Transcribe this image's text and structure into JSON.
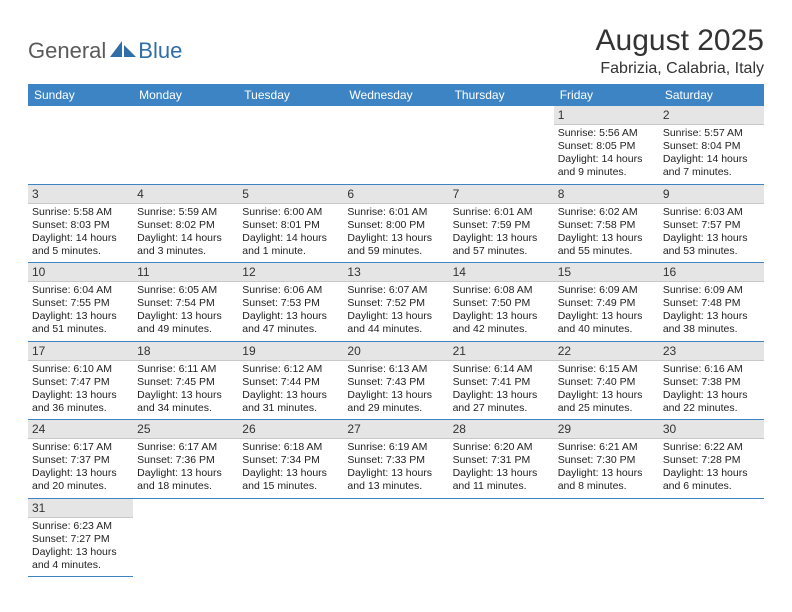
{
  "logo": {
    "text1": "General",
    "text2": "Blue"
  },
  "title": "August 2025",
  "subtitle": "Fabrizia, Calabria, Italy",
  "colors": {
    "header_bg": "#3d84c4",
    "header_fg": "#ffffff",
    "daynum_bg": "#e5e5e5",
    "row_border": "#3d84c4",
    "logo_primary": "#5a5a5a",
    "logo_accent": "#2f6ea8"
  },
  "typography": {
    "title_size": 30,
    "subtitle_size": 16,
    "header_cell_size": 12,
    "daynum_size": 12,
    "body_size": 10.5
  },
  "weekdays": [
    "Sunday",
    "Monday",
    "Tuesday",
    "Wednesday",
    "Thursday",
    "Friday",
    "Saturday"
  ],
  "weeks": [
    [
      null,
      null,
      null,
      null,
      null,
      {
        "n": "1",
        "sr": "Sunrise: 5:56 AM",
        "ss": "Sunset: 8:05 PM",
        "dl": "Daylight: 14 hours and 9 minutes."
      },
      {
        "n": "2",
        "sr": "Sunrise: 5:57 AM",
        "ss": "Sunset: 8:04 PM",
        "dl": "Daylight: 14 hours and 7 minutes."
      }
    ],
    [
      {
        "n": "3",
        "sr": "Sunrise: 5:58 AM",
        "ss": "Sunset: 8:03 PM",
        "dl": "Daylight: 14 hours and 5 minutes."
      },
      {
        "n": "4",
        "sr": "Sunrise: 5:59 AM",
        "ss": "Sunset: 8:02 PM",
        "dl": "Daylight: 14 hours and 3 minutes."
      },
      {
        "n": "5",
        "sr": "Sunrise: 6:00 AM",
        "ss": "Sunset: 8:01 PM",
        "dl": "Daylight: 14 hours and 1 minute."
      },
      {
        "n": "6",
        "sr": "Sunrise: 6:01 AM",
        "ss": "Sunset: 8:00 PM",
        "dl": "Daylight: 13 hours and 59 minutes."
      },
      {
        "n": "7",
        "sr": "Sunrise: 6:01 AM",
        "ss": "Sunset: 7:59 PM",
        "dl": "Daylight: 13 hours and 57 minutes."
      },
      {
        "n": "8",
        "sr": "Sunrise: 6:02 AM",
        "ss": "Sunset: 7:58 PM",
        "dl": "Daylight: 13 hours and 55 minutes."
      },
      {
        "n": "9",
        "sr": "Sunrise: 6:03 AM",
        "ss": "Sunset: 7:57 PM",
        "dl": "Daylight: 13 hours and 53 minutes."
      }
    ],
    [
      {
        "n": "10",
        "sr": "Sunrise: 6:04 AM",
        "ss": "Sunset: 7:55 PM",
        "dl": "Daylight: 13 hours and 51 minutes."
      },
      {
        "n": "11",
        "sr": "Sunrise: 6:05 AM",
        "ss": "Sunset: 7:54 PM",
        "dl": "Daylight: 13 hours and 49 minutes."
      },
      {
        "n": "12",
        "sr": "Sunrise: 6:06 AM",
        "ss": "Sunset: 7:53 PM",
        "dl": "Daylight: 13 hours and 47 minutes."
      },
      {
        "n": "13",
        "sr": "Sunrise: 6:07 AM",
        "ss": "Sunset: 7:52 PM",
        "dl": "Daylight: 13 hours and 44 minutes."
      },
      {
        "n": "14",
        "sr": "Sunrise: 6:08 AM",
        "ss": "Sunset: 7:50 PM",
        "dl": "Daylight: 13 hours and 42 minutes."
      },
      {
        "n": "15",
        "sr": "Sunrise: 6:09 AM",
        "ss": "Sunset: 7:49 PM",
        "dl": "Daylight: 13 hours and 40 minutes."
      },
      {
        "n": "16",
        "sr": "Sunrise: 6:09 AM",
        "ss": "Sunset: 7:48 PM",
        "dl": "Daylight: 13 hours and 38 minutes."
      }
    ],
    [
      {
        "n": "17",
        "sr": "Sunrise: 6:10 AM",
        "ss": "Sunset: 7:47 PM",
        "dl": "Daylight: 13 hours and 36 minutes."
      },
      {
        "n": "18",
        "sr": "Sunrise: 6:11 AM",
        "ss": "Sunset: 7:45 PM",
        "dl": "Daylight: 13 hours and 34 minutes."
      },
      {
        "n": "19",
        "sr": "Sunrise: 6:12 AM",
        "ss": "Sunset: 7:44 PM",
        "dl": "Daylight: 13 hours and 31 minutes."
      },
      {
        "n": "20",
        "sr": "Sunrise: 6:13 AM",
        "ss": "Sunset: 7:43 PM",
        "dl": "Daylight: 13 hours and 29 minutes."
      },
      {
        "n": "21",
        "sr": "Sunrise: 6:14 AM",
        "ss": "Sunset: 7:41 PM",
        "dl": "Daylight: 13 hours and 27 minutes."
      },
      {
        "n": "22",
        "sr": "Sunrise: 6:15 AM",
        "ss": "Sunset: 7:40 PM",
        "dl": "Daylight: 13 hours and 25 minutes."
      },
      {
        "n": "23",
        "sr": "Sunrise: 6:16 AM",
        "ss": "Sunset: 7:38 PM",
        "dl": "Daylight: 13 hours and 22 minutes."
      }
    ],
    [
      {
        "n": "24",
        "sr": "Sunrise: 6:17 AM",
        "ss": "Sunset: 7:37 PM",
        "dl": "Daylight: 13 hours and 20 minutes."
      },
      {
        "n": "25",
        "sr": "Sunrise: 6:17 AM",
        "ss": "Sunset: 7:36 PM",
        "dl": "Daylight: 13 hours and 18 minutes."
      },
      {
        "n": "26",
        "sr": "Sunrise: 6:18 AM",
        "ss": "Sunset: 7:34 PM",
        "dl": "Daylight: 13 hours and 15 minutes."
      },
      {
        "n": "27",
        "sr": "Sunrise: 6:19 AM",
        "ss": "Sunset: 7:33 PM",
        "dl": "Daylight: 13 hours and 13 minutes."
      },
      {
        "n": "28",
        "sr": "Sunrise: 6:20 AM",
        "ss": "Sunset: 7:31 PM",
        "dl": "Daylight: 13 hours and 11 minutes."
      },
      {
        "n": "29",
        "sr": "Sunrise: 6:21 AM",
        "ss": "Sunset: 7:30 PM",
        "dl": "Daylight: 13 hours and 8 minutes."
      },
      {
        "n": "30",
        "sr": "Sunrise: 6:22 AM",
        "ss": "Sunset: 7:28 PM",
        "dl": "Daylight: 13 hours and 6 minutes."
      }
    ],
    [
      {
        "n": "31",
        "sr": "Sunrise: 6:23 AM",
        "ss": "Sunset: 7:27 PM",
        "dl": "Daylight: 13 hours and 4 minutes."
      },
      null,
      null,
      null,
      null,
      null,
      null
    ]
  ]
}
